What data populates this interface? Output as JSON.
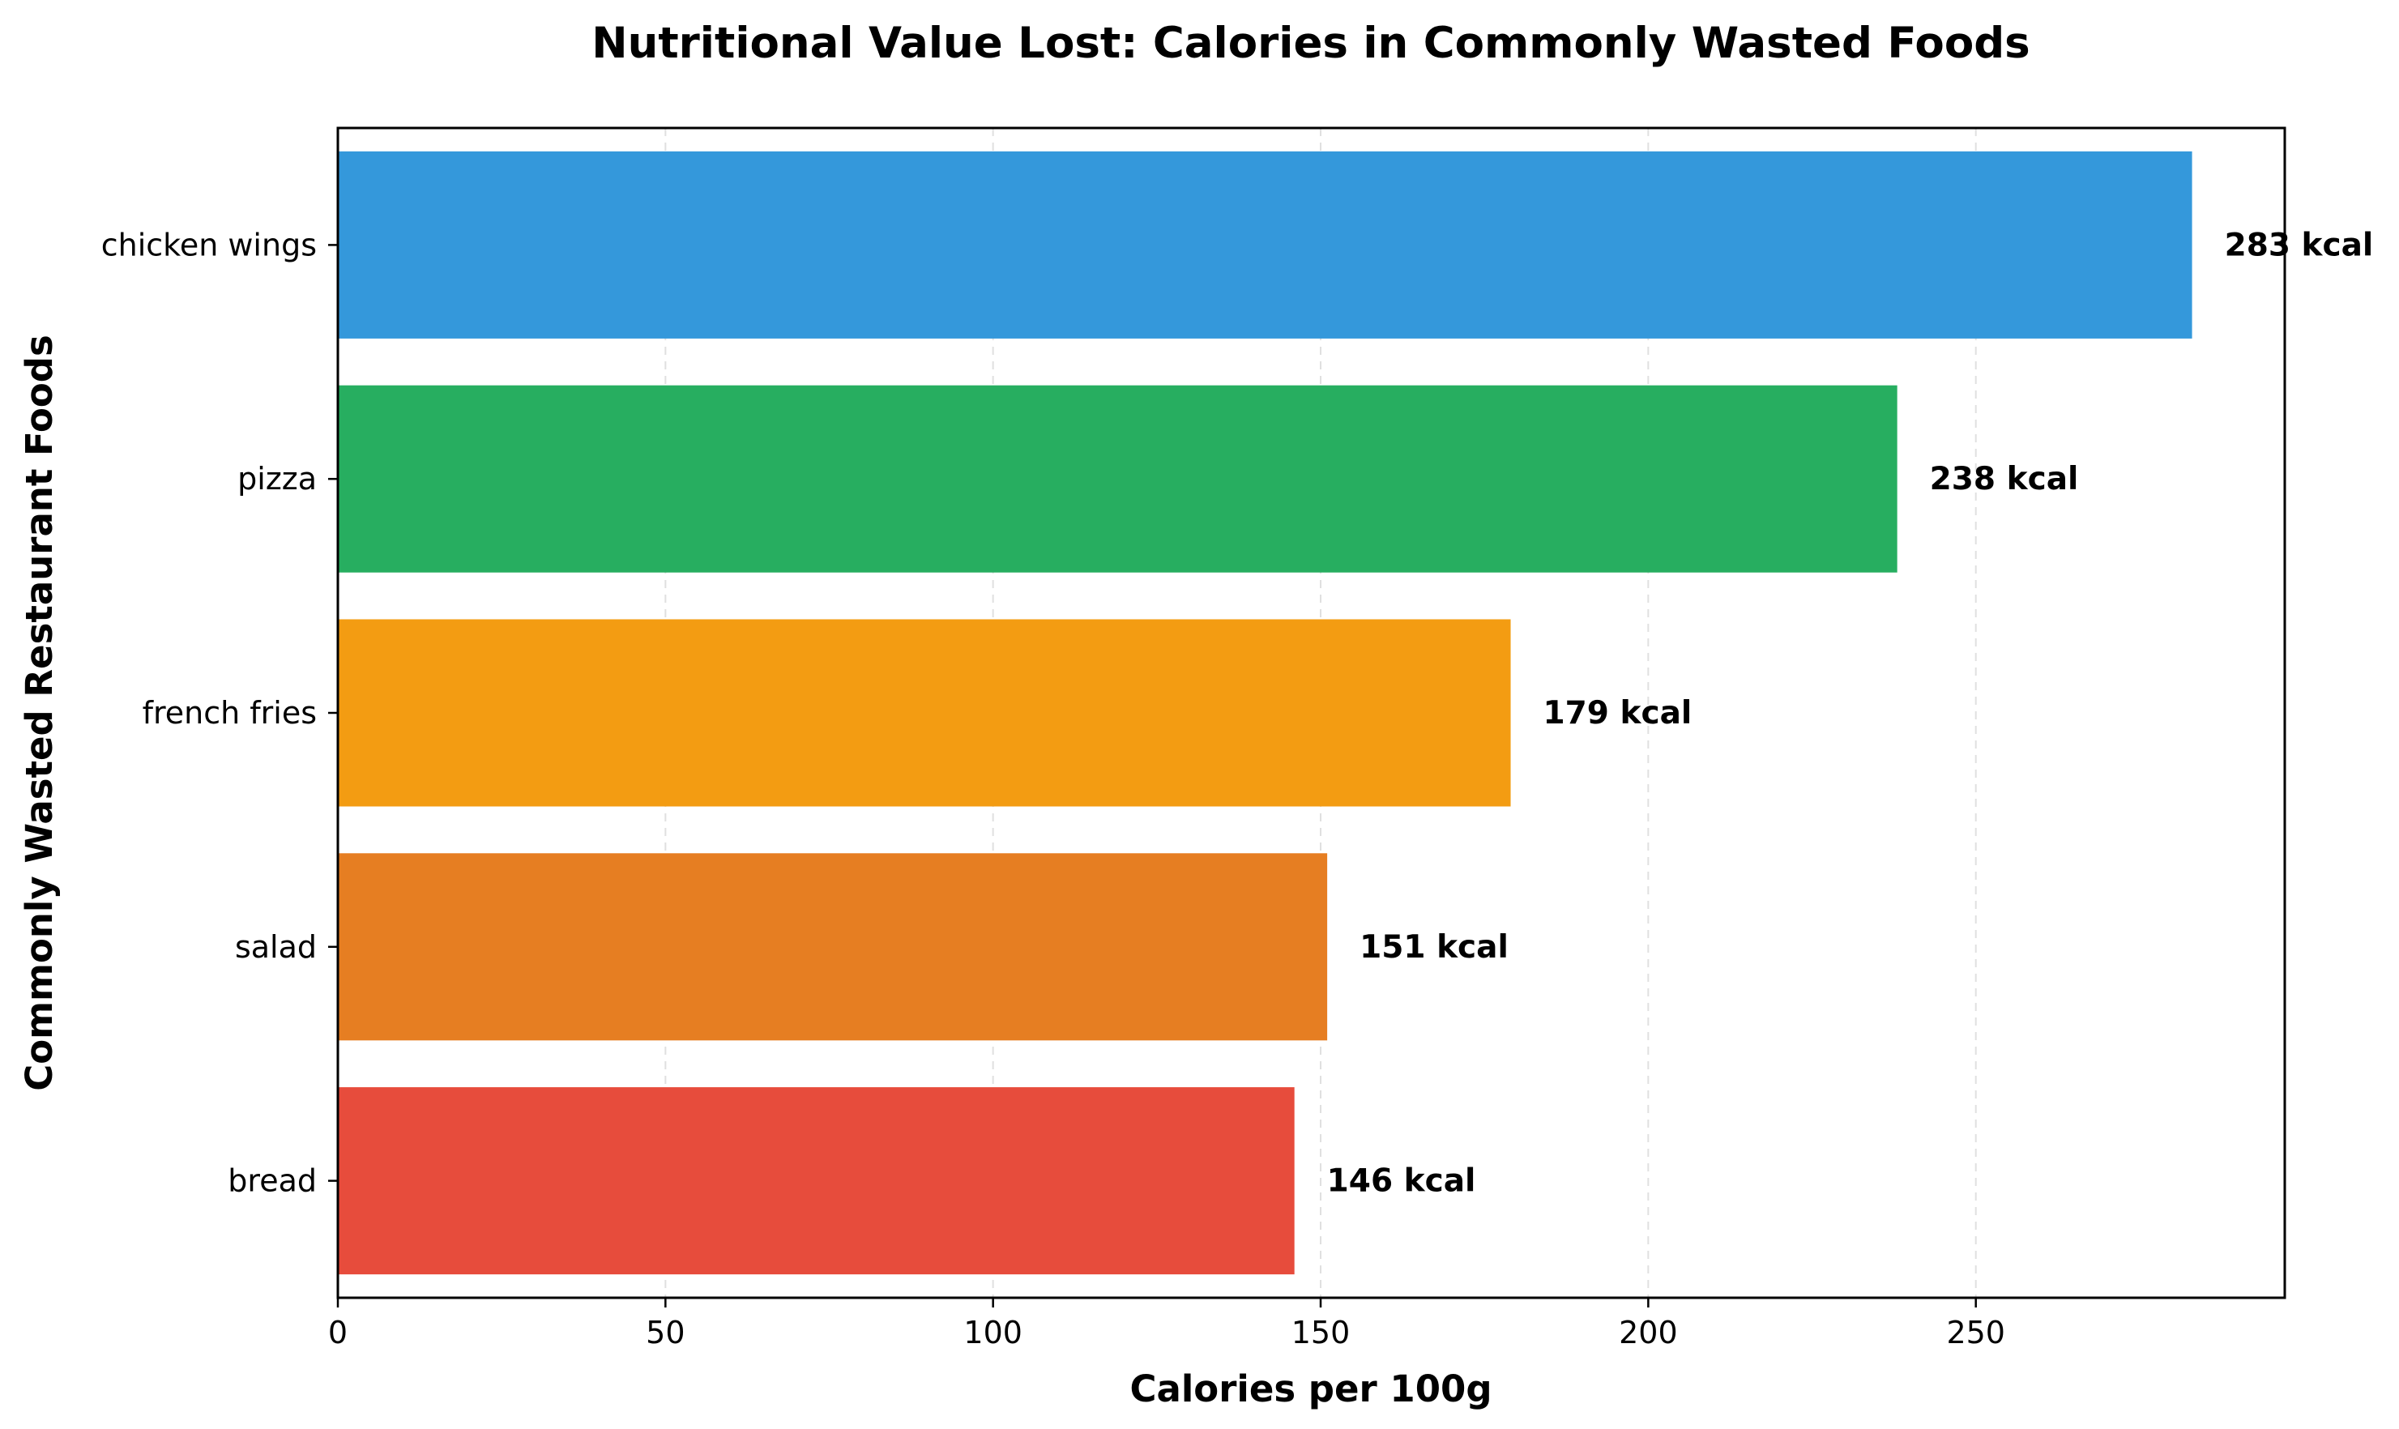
{
  "chart_data": {
    "type": "bar",
    "orientation": "horizontal",
    "title": "Nutritional Value Lost: Calories in Commonly Wasted Foods",
    "xlabel": "Calories per 100g",
    "ylabel": "Commonly Wasted Restaurant Foods",
    "categories": [
      "chicken wings",
      "pizza",
      "french fries",
      "salad",
      "bread"
    ],
    "values": [
      283,
      238,
      179,
      151,
      146
    ],
    "data_labels": [
      "283 kcal",
      "238 kcal",
      "179 kcal",
      "151 kcal",
      "146 kcal"
    ],
    "colors": [
      "#3498db",
      "#27ae60",
      "#f39c12",
      "#e67e22",
      "#e74c3c"
    ],
    "xlim": [
      0,
      297.15
    ],
    "xticks": [
      0,
      50,
      100,
      150,
      200,
      250
    ],
    "xtick_labels": [
      "0",
      "50",
      "100",
      "150",
      "200",
      "250"
    ],
    "grid": "x-axis dashed",
    "legend": "none"
  }
}
